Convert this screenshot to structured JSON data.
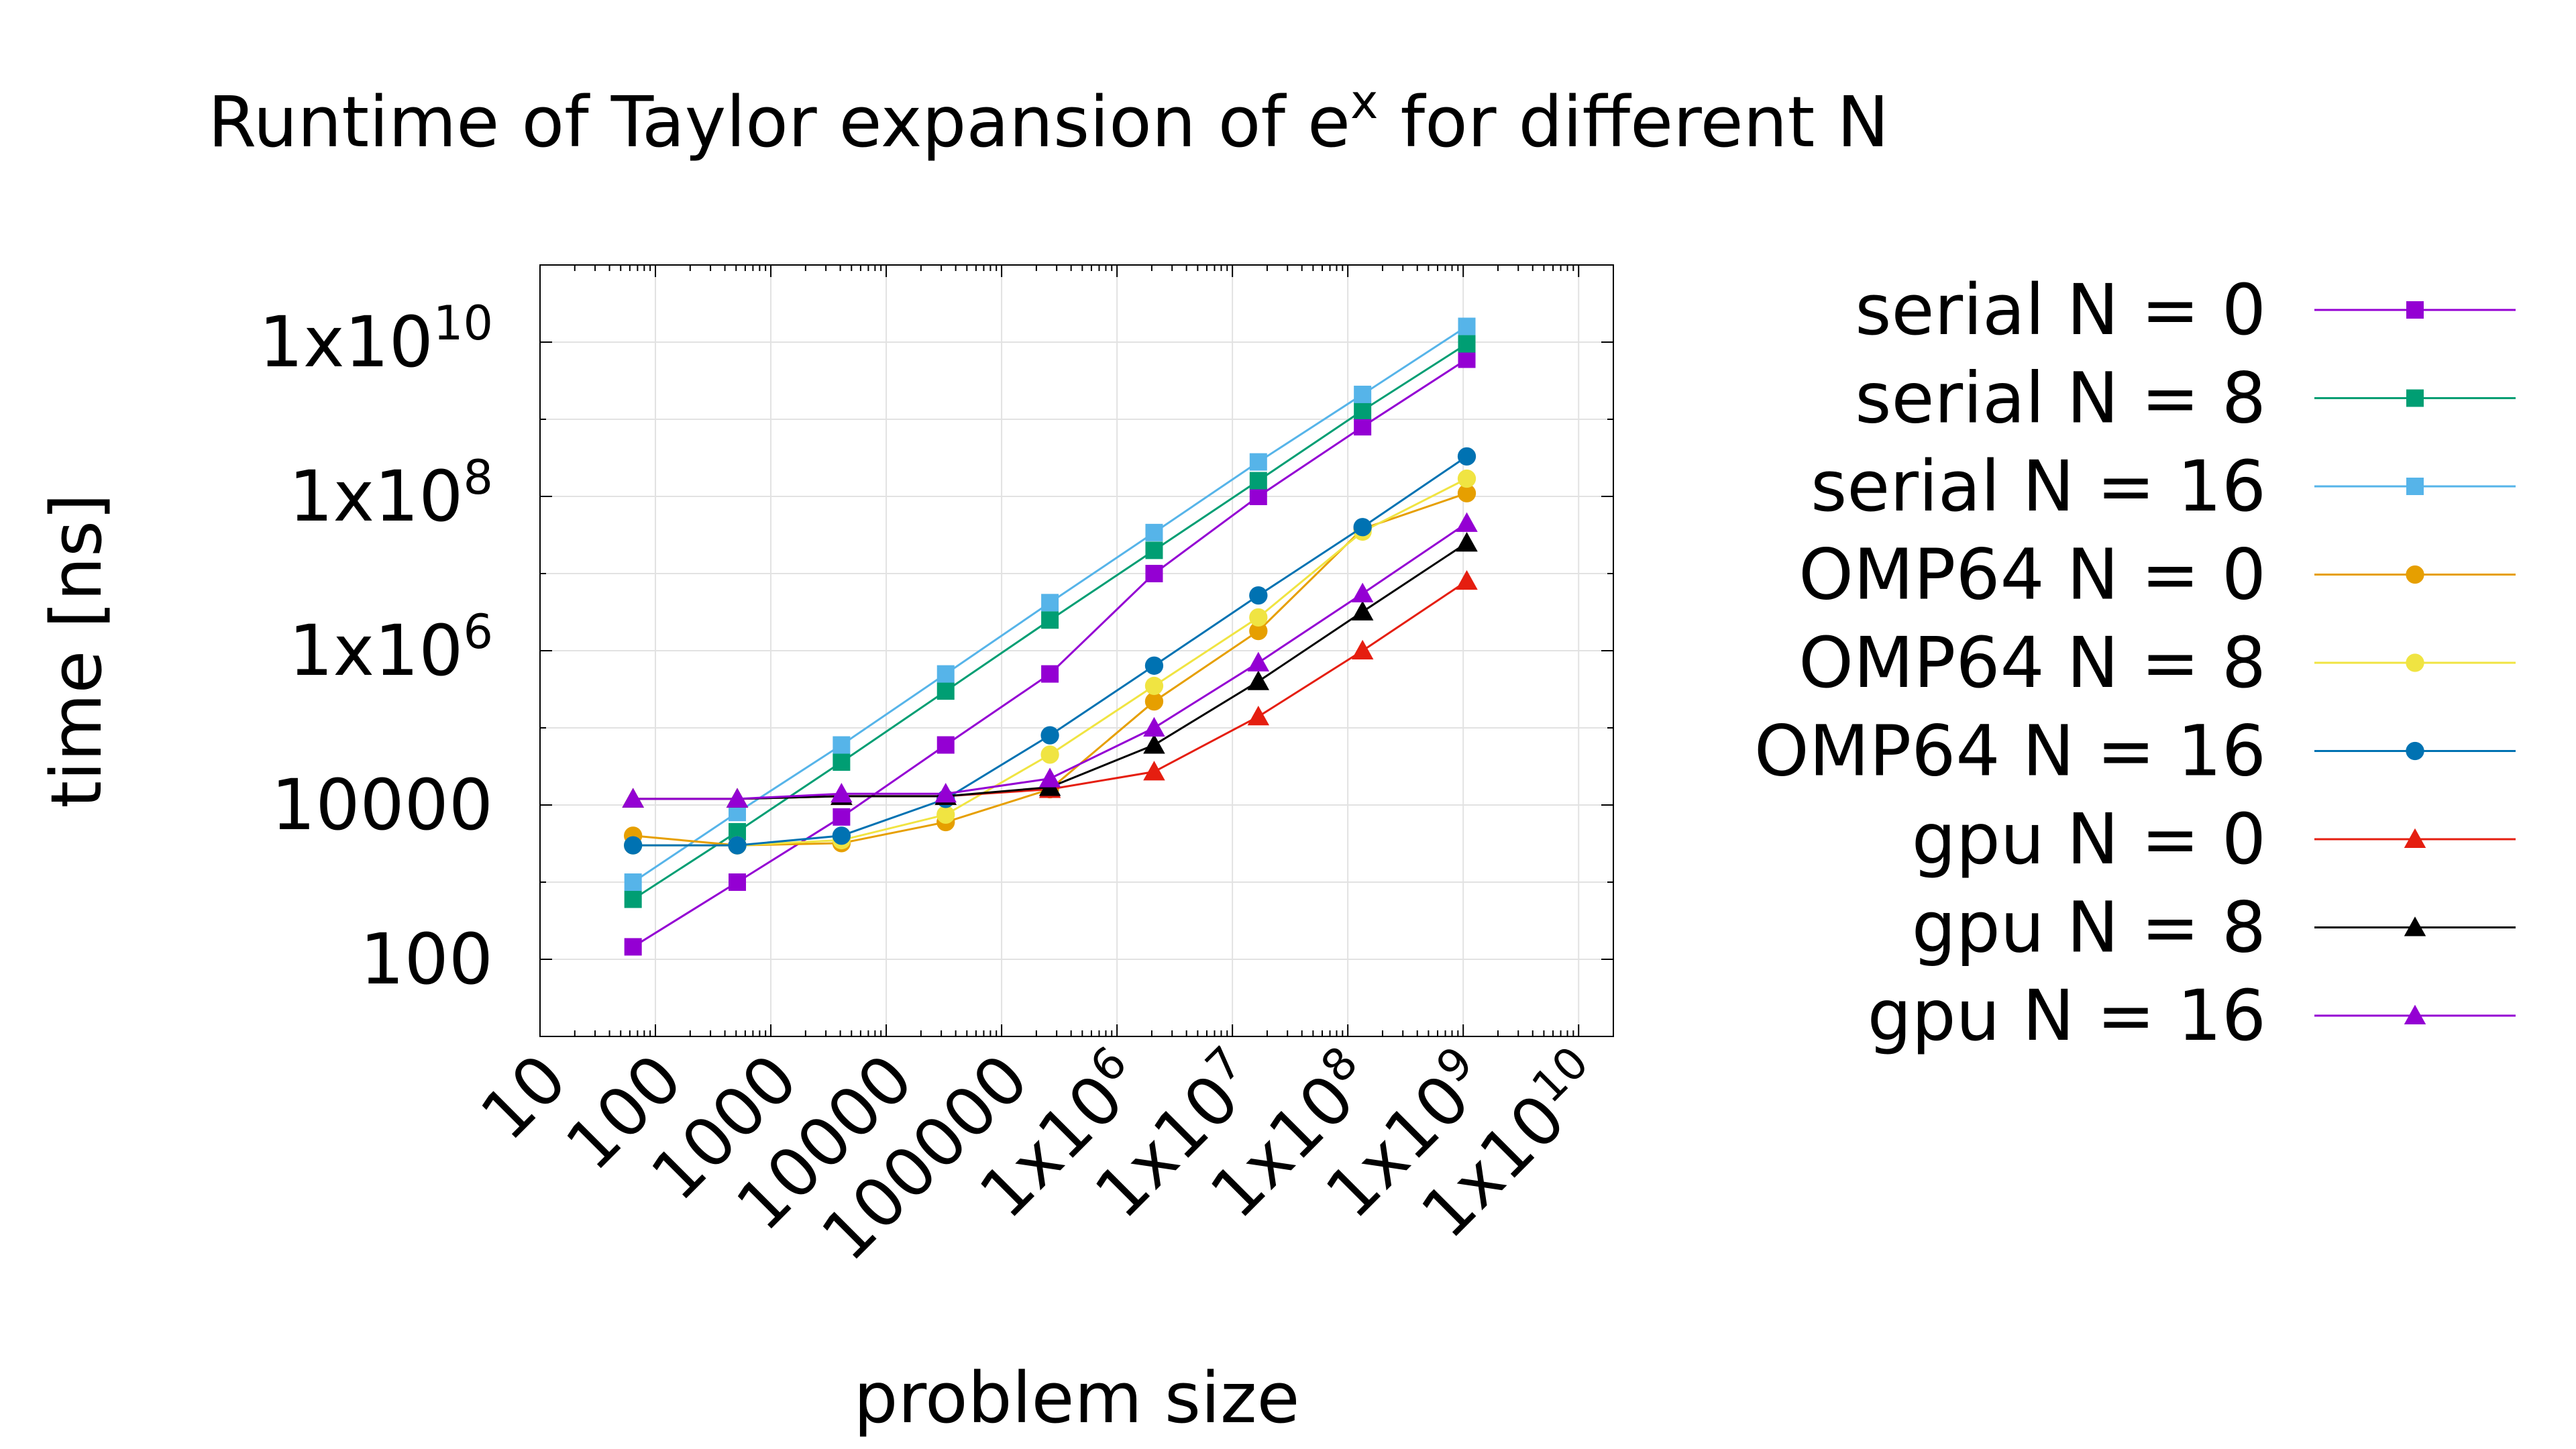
{
  "chart_data": {
    "type": "line",
    "title_main": "Runtime of Taylor expansion of e",
    "title_sup": "x",
    "title_end": " for different N",
    "xlabel": "problem size",
    "ylabel": "time [ns]",
    "x_scale": "log",
    "y_scale": "log",
    "xlim": [
      10,
      20000000000
    ],
    "ylim": [
      10,
      100000000000
    ],
    "grid": true,
    "legend_position": "right",
    "x_ticks": [
      {
        "value": 10,
        "base": "10",
        "exp": ""
      },
      {
        "value": 100,
        "base": "100",
        "exp": ""
      },
      {
        "value": 1000,
        "base": "1000",
        "exp": ""
      },
      {
        "value": 10000,
        "base": "10000",
        "exp": ""
      },
      {
        "value": 100000,
        "base": "100000",
        "exp": ""
      },
      {
        "value": 1000000,
        "base": "1x10",
        "exp": "6"
      },
      {
        "value": 10000000,
        "base": "1x10",
        "exp": "7"
      },
      {
        "value": 100000000,
        "base": "1x10",
        "exp": "8"
      },
      {
        "value": 1000000000,
        "base": "1x10",
        "exp": "9"
      },
      {
        "value": 10000000000,
        "base": "1x10",
        "exp": "10"
      }
    ],
    "y_ticks": [
      {
        "value": 100,
        "base": "100",
        "exp": ""
      },
      {
        "value": 10000,
        "base": "10000",
        "exp": ""
      },
      {
        "value": 1000000,
        "base": "1x10",
        "exp": "6"
      },
      {
        "value": 100000000,
        "base": "1x10",
        "exp": "8"
      },
      {
        "value": 10000000000,
        "base": "1x10",
        "exp": "10"
      }
    ],
    "x": [
      64,
      512,
      4096,
      32768,
      262144,
      2097152,
      16777216,
      134217728,
      1073741824
    ],
    "series": [
      {
        "name": "serial N = 0",
        "color": "#9400d3",
        "marker": "square",
        "values": [
          145,
          1000,
          7000,
          60000,
          500000,
          10000000,
          100000000,
          800000000,
          6000000000
        ]
      },
      {
        "name": "serial N = 8",
        "color": "#009e73",
        "marker": "square",
        "values": [
          600,
          4500,
          36000,
          300000,
          2500000,
          20000000,
          160000000,
          1300000000,
          9500000000
        ]
      },
      {
        "name": "serial N = 16",
        "color": "#56b4e9",
        "marker": "square",
        "values": [
          1000,
          8000,
          60000,
          500000,
          4200000,
          34000000,
          280000000,
          2100000000,
          16000000000
        ]
      },
      {
        "name": "OMP64 N = 0",
        "color": "#e69f00",
        "marker": "circle",
        "values": [
          4000,
          3000,
          3200,
          6000,
          16000,
          220000,
          1800000,
          38000000,
          110000000
        ]
      },
      {
        "name": "OMP64 N = 8",
        "color": "#f0e442",
        "marker": "circle",
        "values": [
          3000,
          3000,
          3500,
          7500,
          45000,
          350000,
          2700000,
          35000000,
          170000000
        ]
      },
      {
        "name": "OMP64 N = 16",
        "color": "#0072b2",
        "marker": "circle",
        "values": [
          3000,
          3000,
          4000,
          12000,
          80000,
          640000,
          5200000,
          40000000,
          330000000
        ]
      },
      {
        "name": "gpu N = 0",
        "color": "#e51e10",
        "marker": "triangle",
        "values": null
      },
      {
        "name": "gpu N = 8",
        "color": "#000000",
        "marker": "triangle",
        "values": [
          12000,
          12000,
          13000,
          13000,
          17000,
          60000,
          400000,
          3200000,
          25000000
        ]
      },
      {
        "name": "gpu N = 16",
        "color": "#9400d3",
        "marker": "triangle",
        "values": [
          12000,
          12000,
          14000,
          14000,
          22000,
          100000,
          700000,
          5500000,
          45000000
        ]
      }
    ],
    "gpu_n0_values": [
      12000,
      12000,
      13000,
      13000,
      16000,
      27000,
      140000,
      1000000,
      8000000
    ]
  }
}
